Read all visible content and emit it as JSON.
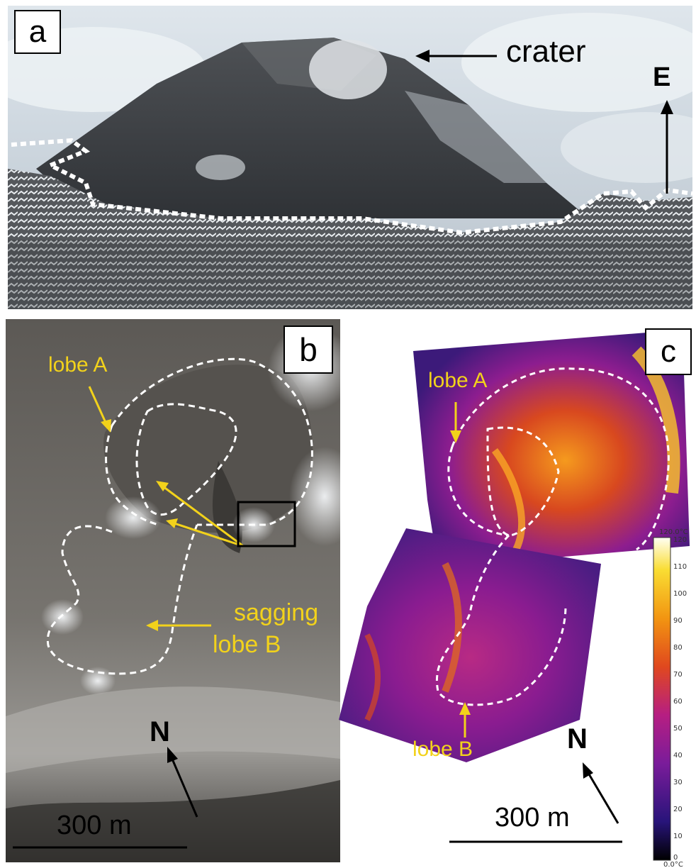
{
  "panels": {
    "a": {
      "label": "a",
      "crater_label": "crater",
      "direction_label": "E"
    },
    "b": {
      "label": "b",
      "lobe_a_label": "lobe A",
      "sagging_label": "sagging",
      "lobe_b_label": "lobe B",
      "north_label": "N",
      "scale_label": "300 m"
    },
    "c": {
      "label": "c",
      "lobe_a_label": "lobe A",
      "lobe_b_label": "lobe B",
      "north_label": "N",
      "scale_label": "300 m",
      "colorbar": {
        "max_label": "120.0°C",
        "min_label": "0.0°C",
        "ticks": [
          "120",
          "110",
          "100",
          "90",
          "80",
          "70",
          "60",
          "50",
          "40",
          "30",
          "20",
          "10",
          "0"
        ]
      }
    }
  },
  "colors": {
    "annotation_yellow": "#f2d21b",
    "outline_white": "#ffffff",
    "arrow_black": "#000000"
  }
}
